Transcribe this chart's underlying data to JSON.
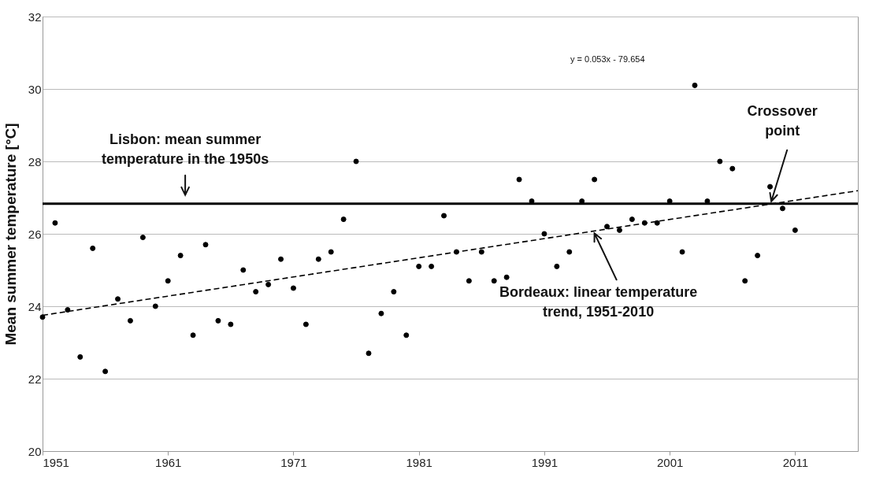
{
  "chart_data": {
    "type": "scatter",
    "ylabel": "Mean summer temperature [°C]",
    "x": [
      1951,
      1952,
      1953,
      1954,
      1955,
      1956,
      1957,
      1958,
      1959,
      1960,
      1961,
      1962,
      1963,
      1964,
      1965,
      1966,
      1967,
      1968,
      1969,
      1970,
      1971,
      1972,
      1973,
      1974,
      1975,
      1976,
      1977,
      1978,
      1979,
      1980,
      1981,
      1982,
      1983,
      1984,
      1985,
      1986,
      1987,
      1988,
      1989,
      1990,
      1991,
      1992,
      1993,
      1994,
      1995,
      1996,
      1997,
      1998,
      1999,
      2000,
      2001,
      2002,
      2003,
      2004,
      2005,
      2006,
      2007,
      2008,
      2009,
      2010,
      2011
    ],
    "xlim": [
      1951,
      2016
    ],
    "xticks": [
      1951,
      1961,
      1971,
      1981,
      1991,
      2001,
      2011
    ],
    "ylim": [
      20,
      32
    ],
    "yticks": [
      20,
      22,
      24,
      26,
      28,
      30,
      32
    ],
    "grid": "y",
    "series": [
      {
        "color": "#000000",
        "marker": "circle",
        "values": [
          23.7,
          26.3,
          23.9,
          22.6,
          25.6,
          22.2,
          24.2,
          23.6,
          25.9,
          24.0,
          24.7,
          25.4,
          23.2,
          25.7,
          23.6,
          23.5,
          25.0,
          24.4,
          24.6,
          25.3,
          24.5,
          23.5,
          25.3,
          25.5,
          26.4,
          28.0,
          22.7,
          23.8,
          24.4,
          23.2,
          25.1,
          25.1,
          26.5,
          25.5,
          24.7,
          25.5,
          24.7,
          24.8,
          27.5,
          26.9,
          26.0,
          25.1,
          25.5,
          26.9,
          27.5,
          26.2,
          26.1,
          26.4,
          26.3,
          26.3,
          26.9,
          25.5,
          30.1,
          26.9,
          28.0,
          27.8,
          24.7,
          25.4,
          27.3,
          26.7,
          26.1
        ]
      },
      {
        "type": "line",
        "x": [
          1951,
          2016
        ],
        "values": [
          23.75,
          27.19
        ],
        "color": "#000000",
        "line_style": "dashed"
      }
    ],
    "ref_lines": [
      {
        "axis": "y",
        "value": 26.83,
        "color": "#000000",
        "label": "Lisbon: mean summer temperature in the 1950s"
      }
    ],
    "annotations": [
      {
        "text": "Bordeaux: linear temperature trend, 1951-2010",
        "x": 1995,
        "y": 26.08
      },
      {
        "text": "Crossover point",
        "x": 2009.1,
        "y": 26.83
      },
      "y = 0.053x - 79.654"
    ]
  }
}
